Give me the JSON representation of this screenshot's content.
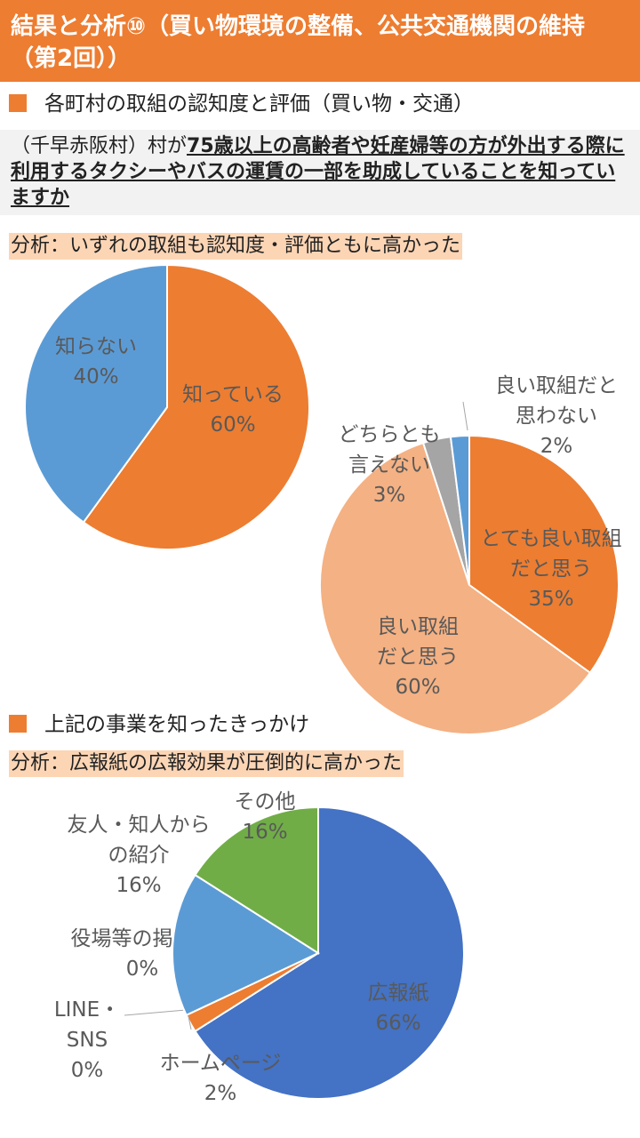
{
  "header": {
    "title": "結果と分析⑩（買い物環境の整備、公共交通機関の維持　（第2回））"
  },
  "section1": {
    "heading": "各町村の取組の認知度と評価（買い物・交通）"
  },
  "question": {
    "prefix": "（千早赤阪村）村が",
    "main": "75歳以上の高齢者や妊産婦等の方が外出する際に利用するタクシーやバスの運賃の一部を助成していることを知っていますか"
  },
  "analysis1": {
    "text": "分析：いずれの取組も認知度・評価ともに高かった"
  },
  "section2": {
    "heading": "上記の事業を知ったきっかけ"
  },
  "analysis2": {
    "text": "分析：広報紙の広報効果が圧倒的に高かった"
  },
  "colors": {
    "header": "#ed7d31",
    "orange": "#ed7d31",
    "light_orange": "#f4b183",
    "blue": "#5b9bd5",
    "dark_blue": "#4472c4",
    "gray": "#a5a5a5",
    "green": "#70ad47",
    "highlight": "#fcd5b5"
  },
  "chart_data": [
    {
      "type": "pie",
      "slices": [
        {
          "label": "知っている",
          "value": 60,
          "pct_label": "60%",
          "color": "#ed7d31"
        },
        {
          "label": "知らない",
          "value": 40,
          "pct_label": "40%",
          "color": "#5b9bd5"
        }
      ]
    },
    {
      "type": "pie",
      "slices": [
        {
          "label": "とても良い取組だと思う",
          "value": 35,
          "pct_label": "35%",
          "color": "#ed7d31"
        },
        {
          "label": "良い取組だと思う",
          "value": 60,
          "pct_label": "60%",
          "color": "#f4b183"
        },
        {
          "label": "どちらとも言えない",
          "value": 3,
          "pct_label": "3%",
          "color": "#a5a5a5"
        },
        {
          "label": "良い取組だと思わない",
          "value": 2,
          "pct_label": "2%",
          "color": "#5b9bd5"
        }
      ]
    },
    {
      "type": "pie",
      "slices": [
        {
          "label": "広報紙",
          "value": 66,
          "pct_label": "66%",
          "color": "#4472c4"
        },
        {
          "label": "ホームページ",
          "value": 2,
          "pct_label": "2%",
          "color": "#ed7d31"
        },
        {
          "label": "LINE・SNS",
          "value": 0,
          "pct_label": "0%",
          "color": "#a5a5a5"
        },
        {
          "label": "役場等の掲示物",
          "value": 0,
          "pct_label": "0%",
          "color": "#ffc000"
        },
        {
          "label": "友人・知人からの紹介",
          "value": 16,
          "pct_label": "16%",
          "color": "#5b9bd5"
        },
        {
          "label": "その他",
          "value": 16,
          "pct_label": "16%",
          "color": "#70ad47"
        }
      ]
    }
  ]
}
